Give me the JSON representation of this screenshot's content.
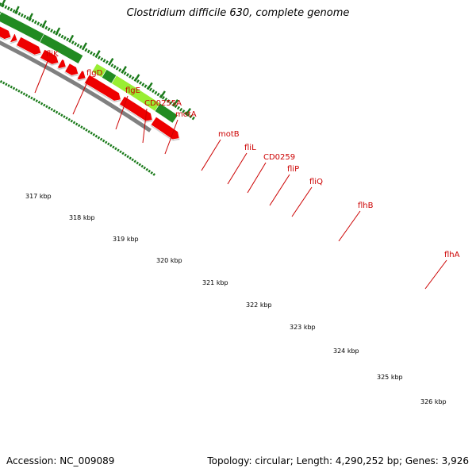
{
  "title": "Clostridium difficile 630, complete genome",
  "footer": {
    "accession": "Accession: NC_009089",
    "summary": "Topology: circular; Length: 4,290,252 bp; Genes: 3,926"
  },
  "colors": {
    "gene_label": "#cc0000",
    "forward_gene": "#228b22",
    "forward_gene_highlight": "#99ee33",
    "cds": "#ee0000",
    "backbone": "#808080",
    "ticks": "#1a7a1a"
  },
  "kbp_labels": [
    "317 kbp",
    "318 kbp",
    "319 kbp",
    "320 kbp",
    "321 kbp",
    "322 kbp",
    "323 kbp",
    "324 kbp",
    "325 kbp",
    "326 kbp"
  ],
  "genes": [
    "fliK",
    "flgD",
    "flgE",
    "CD0255A",
    "motA",
    "motB",
    "fliL",
    "CD0259",
    "fliP",
    "fliQ",
    "flhB",
    "flhA"
  ]
}
